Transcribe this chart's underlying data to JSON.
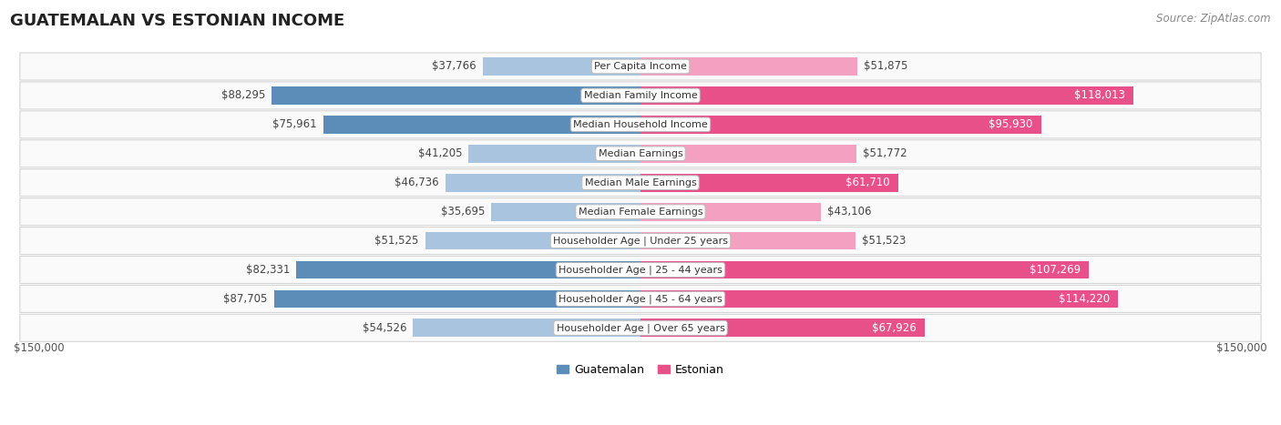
{
  "title": "GUATEMALAN VS ESTONIAN INCOME",
  "source": "Source: ZipAtlas.com",
  "categories": [
    "Per Capita Income",
    "Median Family Income",
    "Median Household Income",
    "Median Earnings",
    "Median Male Earnings",
    "Median Female Earnings",
    "Householder Age | Under 25 years",
    "Householder Age | 25 - 44 years",
    "Householder Age | 45 - 64 years",
    "Householder Age | Over 65 years"
  ],
  "guatemalan_values": [
    37766,
    88295,
    75961,
    41205,
    46736,
    35695,
    51525,
    82331,
    87705,
    54526
  ],
  "estonian_values": [
    51875,
    118013,
    95930,
    51772,
    61710,
    43106,
    51523,
    107269,
    114220,
    67926
  ],
  "guatemalan_labels": [
    "$37,766",
    "$88,295",
    "$75,961",
    "$41,205",
    "$46,736",
    "$35,695",
    "$51,525",
    "$82,331",
    "$87,705",
    "$54,526"
  ],
  "estonian_labels": [
    "$51,875",
    "$118,013",
    "$95,930",
    "$51,772",
    "$61,710",
    "$43,106",
    "$51,523",
    "$107,269",
    "$114,220",
    "$67,926"
  ],
  "max_value": 150000,
  "guat_dark": "#5B8DB8",
  "guat_light": "#A8C4DE",
  "esto_dark": "#E8508A",
  "esto_light": "#F4A0C0",
  "row_bg": "#F5F5F5",
  "row_border": "#E0E0E0",
  "bar_height": 0.62,
  "threshold": 60000,
  "legend_guatemalan": "Guatemalan",
  "legend_estonian": "Estonian",
  "x_label": "$150,000",
  "title_fontsize": 13,
  "label_fontsize": 8.5,
  "cat_fontsize": 8.0,
  "source_fontsize": 8.5
}
